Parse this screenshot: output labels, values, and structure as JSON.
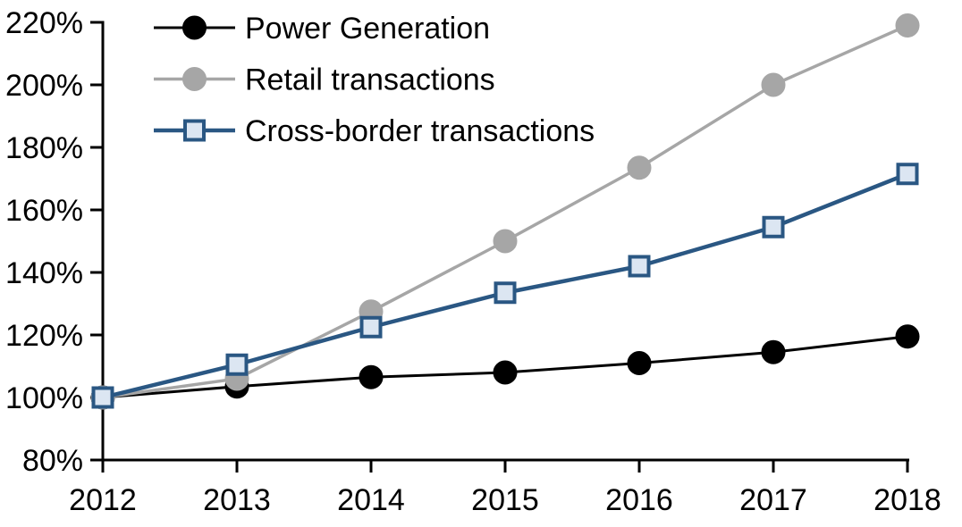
{
  "chart": {
    "background": "#FFFFFF",
    "text_color": "#000000",
    "axis_color": "#000000"
  },
  "chart_data": {
    "type": "line",
    "title": "",
    "xlabel": "",
    "ylabel": "",
    "x": [
      "2012",
      "2013",
      "2014",
      "2015",
      "2016",
      "2017",
      "2018"
    ],
    "series": [
      {
        "name": "Power Generation",
        "values": [
          100,
          103.5,
          106.5,
          108,
          111,
          114.5,
          119.5
        ],
        "line_color": "#000000",
        "line_width": 3,
        "marker": "circle",
        "marker_fill": "#000000",
        "marker_stroke": "#000000"
      },
      {
        "name": "Retail transactions",
        "values": [
          100,
          106,
          127.5,
          150,
          173.5,
          200,
          219
        ],
        "line_color": "#A6A6A6",
        "line_width": 3.5,
        "marker": "circle",
        "marker_fill": "#A6A6A6",
        "marker_stroke": "#A6A6A6"
      },
      {
        "name": "Cross-border transactions",
        "values": [
          100,
          110.5,
          122.5,
          133.5,
          142,
          154.5,
          171.5
        ],
        "line_color": "#2A5783",
        "line_width": 4.5,
        "marker": "square",
        "marker_fill": "#DCE6F2",
        "marker_stroke": "#2A5783"
      }
    ],
    "ylim": [
      80,
      220
    ],
    "ytick_step": 20,
    "ytick_labels": [
      "80%",
      "100%",
      "120%",
      "140%",
      "160%",
      "180%",
      "200%",
      "220%"
    ],
    "xtick_labels": [
      "2012",
      "2013",
      "2014",
      "2015",
      "2016",
      "2017",
      "2018"
    ],
    "legend_position": "top-left",
    "grid": false
  }
}
